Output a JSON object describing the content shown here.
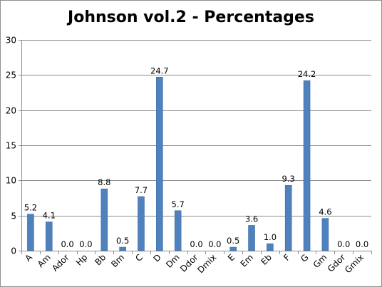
{
  "chart_data": {
    "type": "bar",
    "title": "Johnson vol.2 - Percentages",
    "xlabel": "",
    "ylabel": "",
    "categories": [
      "A",
      "Am",
      "Ador",
      "Hp",
      "Bb",
      "Bm",
      "C",
      "D",
      "Dm",
      "Ddor",
      "Dmix",
      "E",
      "Em",
      "Eb",
      "F",
      "G",
      "Gm",
      "Gdor",
      "Gmix"
    ],
    "values": [
      5.2,
      4.1,
      0.0,
      0.0,
      8.8,
      0.5,
      7.7,
      24.7,
      5.7,
      0.0,
      0.0,
      0.5,
      3.6,
      1.0,
      9.3,
      24.2,
      4.6,
      0.0,
      0.0
    ],
    "data_labels": [
      "5.2",
      "4.1",
      "0.0",
      "0.0",
      "8.8",
      "0.5",
      "7.7",
      "24.7",
      "5.7",
      "0.0",
      "0.0",
      "0.5",
      "3.6",
      "1.0",
      "9.3",
      "24.2",
      "4.6",
      "0.0",
      "0.0"
    ],
    "ylim": [
      0,
      30
    ],
    "yticks": [
      0,
      5,
      10,
      15,
      20,
      25,
      30
    ],
    "grid": true,
    "legend": "none",
    "bar_color": "#4f81bd"
  }
}
